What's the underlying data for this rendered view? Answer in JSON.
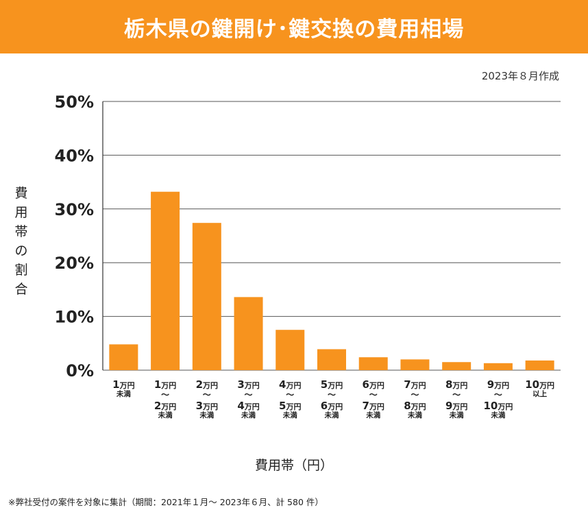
{
  "title": "栃木県の鍵開け･鍵交換の費用相場",
  "date_note": "2023年８月作成",
  "footnote": "※弊社受付の案件を対象に集計（期間：2021年１月～ 2023年６月、計 580 件）",
  "colors": {
    "banner": "#f7931e",
    "bar": "#f7931e",
    "grid": "#555555"
  },
  "chart_data": {
    "type": "bar",
    "title": "栃木県の鍵開け･鍵交換の費用相場",
    "xlabel": "費用帯（円）",
    "ylabel": "費用帯の割合",
    "ylim": [
      0,
      50
    ],
    "yticks": [
      {
        "value": 0,
        "label": "0%"
      },
      {
        "value": 10,
        "label": "10%"
      },
      {
        "value": 20,
        "label": "20%"
      },
      {
        "value": 30,
        "label": "30%"
      },
      {
        "value": 40,
        "label": "40%"
      },
      {
        "value": 50,
        "label": "50%"
      }
    ],
    "grid": true,
    "categories": [
      {
        "lines": [
          {
            "num": "1",
            "unit": "万円"
          },
          {
            "sub": "未満"
          }
        ]
      },
      {
        "lines": [
          {
            "num": "1",
            "unit": "万円"
          },
          {
            "tilde": "～"
          },
          {
            "num": "2",
            "unit": "万円"
          },
          {
            "sub": "未満"
          }
        ]
      },
      {
        "lines": [
          {
            "num": "2",
            "unit": "万円"
          },
          {
            "tilde": "～"
          },
          {
            "num": "3",
            "unit": "万円"
          },
          {
            "sub": "未満"
          }
        ]
      },
      {
        "lines": [
          {
            "num": "3",
            "unit": "万円"
          },
          {
            "tilde": "～"
          },
          {
            "num": "4",
            "unit": "万円"
          },
          {
            "sub": "未満"
          }
        ]
      },
      {
        "lines": [
          {
            "num": "4",
            "unit": "万円"
          },
          {
            "tilde": "～"
          },
          {
            "num": "5",
            "unit": "万円"
          },
          {
            "sub": "未満"
          }
        ]
      },
      {
        "lines": [
          {
            "num": "5",
            "unit": "万円"
          },
          {
            "tilde": "～"
          },
          {
            "num": "6",
            "unit": "万円"
          },
          {
            "sub": "未満"
          }
        ]
      },
      {
        "lines": [
          {
            "num": "6",
            "unit": "万円"
          },
          {
            "tilde": "～"
          },
          {
            "num": "7",
            "unit": "万円"
          },
          {
            "sub": "未満"
          }
        ]
      },
      {
        "lines": [
          {
            "num": "7",
            "unit": "万円"
          },
          {
            "tilde": "～"
          },
          {
            "num": "8",
            "unit": "万円"
          },
          {
            "sub": "未満"
          }
        ]
      },
      {
        "lines": [
          {
            "num": "8",
            "unit": "万円"
          },
          {
            "tilde": "～"
          },
          {
            "num": "9",
            "unit": "万円"
          },
          {
            "sub": "未満"
          }
        ]
      },
      {
        "lines": [
          {
            "num": "9",
            "unit": "万円"
          },
          {
            "tilde": "～"
          },
          {
            "num": "10",
            "unit": "万円"
          },
          {
            "sub": "未満"
          }
        ]
      },
      {
        "lines": [
          {
            "num": "10",
            "unit": "万円"
          },
          {
            "sub": "以上"
          }
        ]
      }
    ],
    "values": [
      4.8,
      33.2,
      27.4,
      13.6,
      7.5,
      3.9,
      2.4,
      2.0,
      1.5,
      1.3,
      1.8
    ]
  }
}
